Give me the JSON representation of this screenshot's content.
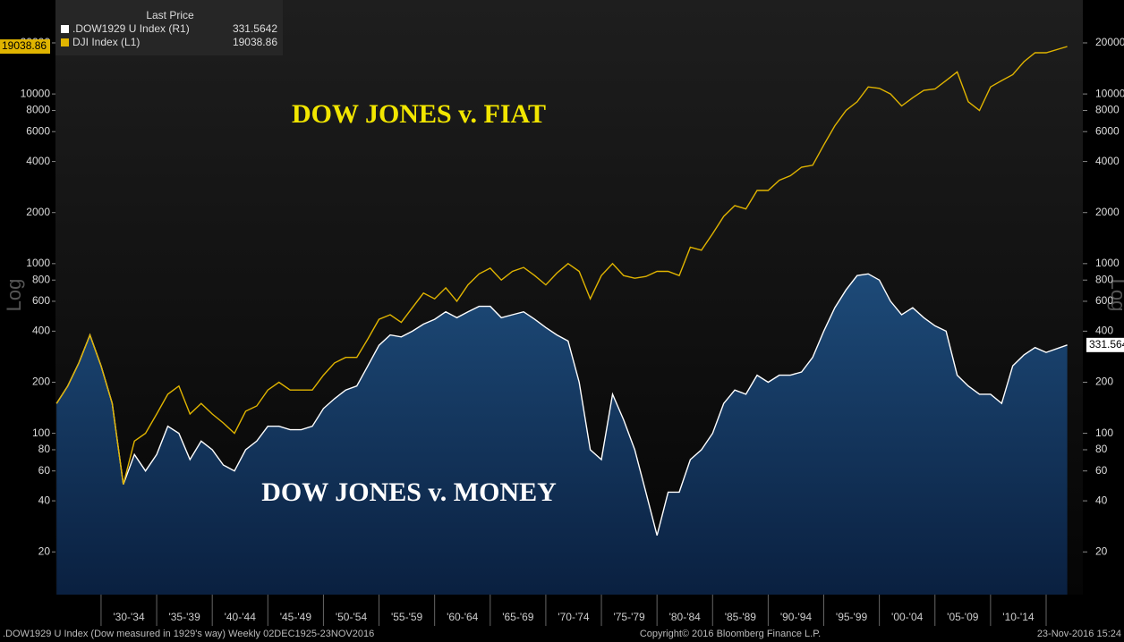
{
  "chart_data": {
    "type": "line",
    "title": "Last Price",
    "annotations": [
      {
        "text": "DOW JONES v. FIAT",
        "color": "#f2e600"
      },
      {
        "text": "DOW JONES v. MONEY",
        "color": "#ffffff"
      }
    ],
    "ylabel": "Log",
    "y2label": "Log",
    "footer": [
      ".DOW1929 U Index (Dow measured in 1929's way)  Weekly 02DEC1925-23NOV2016",
      "Copyright© 2016 Bloomberg Finance L.P.",
      "23-Nov-2016 15:24"
    ],
    "log_scale": true,
    "x": [
      1926,
      1927,
      1928,
      1929,
      1930,
      1931,
      1932,
      1933,
      1934,
      1935,
      1936,
      1937,
      1938,
      1939,
      1940,
      1941,
      1942,
      1943,
      1944,
      1945,
      1946,
      1947,
      1948,
      1949,
      1950,
      1951,
      1952,
      1953,
      1954,
      1955,
      1956,
      1957,
      1958,
      1959,
      1960,
      1961,
      1962,
      1963,
      1964,
      1965,
      1966,
      1967,
      1968,
      1969,
      1970,
      1971,
      1972,
      1973,
      1974,
      1975,
      1976,
      1977,
      1978,
      1979,
      1980,
      1981,
      1982,
      1983,
      1984,
      1985,
      1986,
      1987,
      1988,
      1989,
      1990,
      1991,
      1992,
      1993,
      1994,
      1995,
      1996,
      1997,
      1998,
      1999,
      2000,
      2001,
      2002,
      2003,
      2004,
      2005,
      2006,
      2007,
      2008,
      2009,
      2010,
      2011,
      2012,
      2013,
      2014,
      2015,
      2016.9
    ],
    "xlim": [
      1925.9,
      2018.3
    ],
    "xticks": [
      {
        "value": 1932.5,
        "label": "'30-'34"
      },
      {
        "value": 1937.5,
        "label": "'35-'39"
      },
      {
        "value": 1942.5,
        "label": "'40-'44"
      },
      {
        "value": 1947.5,
        "label": "'45-'49"
      },
      {
        "value": 1952.5,
        "label": "'50-'54"
      },
      {
        "value": 1957.5,
        "label": "'55-'59"
      },
      {
        "value": 1962.5,
        "label": "'60-'64"
      },
      {
        "value": 1967.5,
        "label": "'65-'69"
      },
      {
        "value": 1972.5,
        "label": "'70-'74"
      },
      {
        "value": 1977.5,
        "label": "'75-'79"
      },
      {
        "value": 1982.5,
        "label": "'80-'84"
      },
      {
        "value": 1987.5,
        "label": "'85-'89"
      },
      {
        "value": 1992.5,
        "label": "'90-'94"
      },
      {
        "value": 1997.5,
        "label": "'95-'99"
      },
      {
        "value": 2002.5,
        "label": "'00-'04"
      },
      {
        "value": 2007.5,
        "label": "'05-'09"
      },
      {
        "value": 2012.5,
        "label": "'10-'14"
      }
    ],
    "ylim": [
      11.2,
      35800
    ],
    "yticks": [
      20,
      40,
      60,
      80,
      100,
      200,
      400,
      600,
      800,
      1000,
      2000,
      4000,
      6000,
      8000,
      10000,
      20000
    ],
    "y2lim": [
      11.2,
      35800
    ],
    "y2ticks": [
      20,
      40,
      60,
      80,
      100,
      200,
      400,
      600,
      800,
      1000,
      2000,
      4000,
      6000,
      8000,
      10000,
      20000
    ],
    "series": [
      {
        "name": ".DOW1929 U Index  (R1)",
        "last_price": "331.5642",
        "color": "#ffffff",
        "axis": "y2",
        "values": [
          150,
          190,
          260,
          380,
          250,
          150,
          50,
          75,
          60,
          75,
          110,
          100,
          70,
          90,
          80,
          65,
          60,
          80,
          90,
          110,
          110,
          105,
          105,
          110,
          140,
          160,
          180,
          190,
          250,
          330,
          380,
          370,
          400,
          440,
          470,
          520,
          480,
          520,
          560,
          560,
          480,
          500,
          520,
          470,
          420,
          380,
          350,
          200,
          80,
          70,
          170,
          120,
          80,
          45,
          25,
          45,
          45,
          70,
          80,
          100,
          150,
          180,
          170,
          220,
          200,
          220,
          220,
          230,
          280,
          400,
          550,
          700,
          850,
          870,
          800,
          600,
          500,
          550,
          480,
          430,
          400,
          220,
          190,
          170,
          170,
          150,
          250,
          290,
          320,
          300,
          331.5642
        ]
      },
      {
        "name": "DJI Index  (L1)",
        "last_price": "19038.86",
        "color": "#e0b400",
        "values": [
          150,
          190,
          260,
          380,
          250,
          150,
          50,
          90,
          100,
          130,
          170,
          190,
          130,
          150,
          130,
          115,
          100,
          135,
          145,
          180,
          200,
          180,
          180,
          180,
          220,
          260,
          280,
          280,
          360,
          470,
          500,
          450,
          550,
          670,
          620,
          720,
          600,
          750,
          870,
          940,
          800,
          900,
          950,
          850,
          750,
          880,
          1000,
          900,
          620,
          850,
          1000,
          850,
          820,
          840,
          900,
          900,
          850,
          1250,
          1200,
          1500,
          1900,
          2200,
          2100,
          2700,
          2700,
          3100,
          3300,
          3700,
          3800,
          5000,
          6500,
          8000,
          9000,
          11000,
          10800,
          10000,
          8500,
          9500,
          10500,
          10700,
          12000,
          13500,
          9000,
          8000,
          11000,
          12000,
          13000,
          15500,
          17500,
          17500,
          19038.86
        ]
      }
    ]
  }
}
